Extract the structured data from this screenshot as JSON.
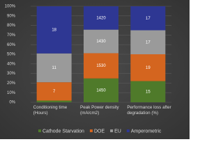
{
  "chart_data": {
    "type": "bar",
    "stack": "percent",
    "categories": [
      "Conditioning time (Hours)",
      "Peak Power density (mA/cm2)",
      "Performance loss after degradation (%)"
    ],
    "series": [
      {
        "name": "Cathode Starvation",
        "color": "#4f7a2a",
        "values": [
          0.66,
          1450,
          15
        ]
      },
      {
        "name": "DOE",
        "color": "#d4651f",
        "values": [
          7,
          1530,
          19
        ]
      },
      {
        "name": "EU",
        "color": "#9a9a9a",
        "values": [
          11,
          1430,
          17
        ]
      },
      {
        "name": "Amperometric",
        "color": "#2e3793",
        "values": [
          18,
          1420,
          17
        ]
      }
    ],
    "ylim": [
      0,
      100
    ],
    "yticks": [
      {
        "value": 0,
        "label": "0%"
      },
      {
        "value": 10,
        "label": "10%"
      },
      {
        "value": 20,
        "label": "20%"
      },
      {
        "value": 30,
        "label": "30%"
      },
      {
        "value": 40,
        "label": "40%"
      },
      {
        "value": 50,
        "label": "50%"
      },
      {
        "value": 60,
        "label": "60%"
      },
      {
        "value": 70,
        "label": "70%"
      },
      {
        "value": 80,
        "label": "80%"
      },
      {
        "value": 90,
        "label": "90%"
      },
      {
        "value": 100,
        "label": "100%"
      }
    ],
    "grid": true,
    "legend": "bottom"
  }
}
